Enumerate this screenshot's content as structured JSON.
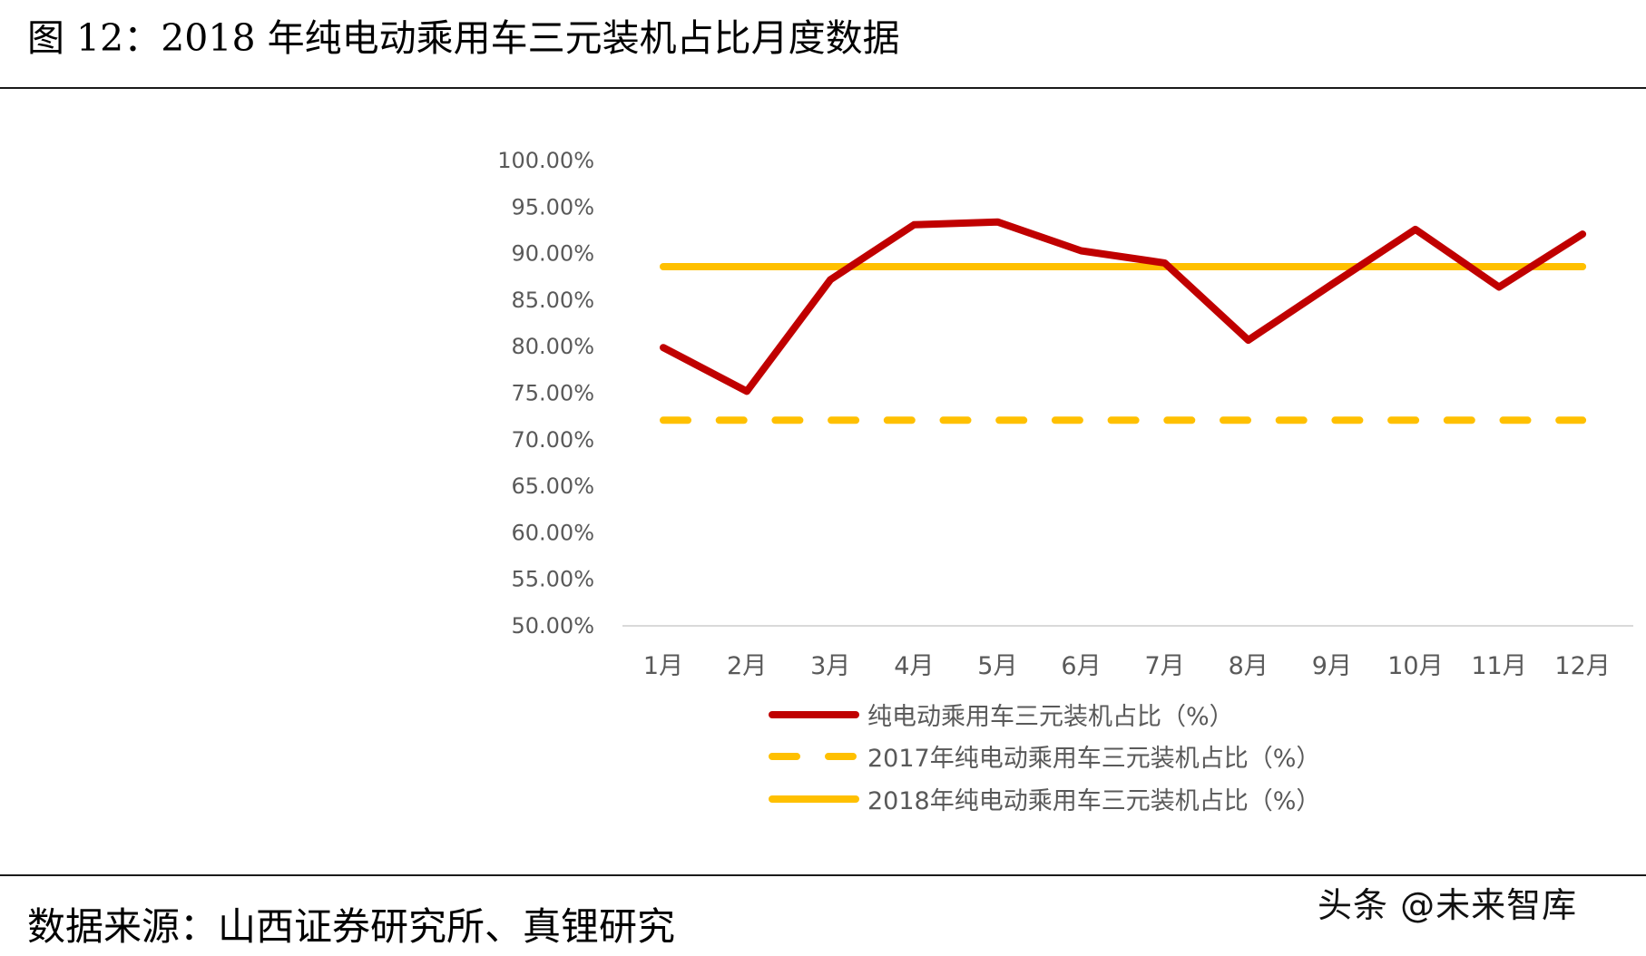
{
  "figure": {
    "title": "图  12：2018 年纯电动乘用车三元装机占比月度数据",
    "source": "数据来源：山西证券研究所、真锂研究",
    "watermark": "头条 @未来智库"
  },
  "colors": {
    "series_main": "#C00000",
    "series_2017": "#FFC000",
    "series_2018": "#FFC000",
    "axis_line": "#D9D9D9",
    "tick_text": "#595959"
  },
  "chart_data": {
    "type": "line",
    "title": "2018 年纯电动乘用车三元装机占比月度数据",
    "xlabel": "",
    "ylabel": "",
    "categories": [
      "1月",
      "2月",
      "3月",
      "4月",
      "5月",
      "6月",
      "7月",
      "8月",
      "9月",
      "10月",
      "11月",
      "12月"
    ],
    "yticks": [
      "100.00%",
      "95.00%",
      "90.00%",
      "85.00%",
      "80.00%",
      "75.00%",
      "70.00%",
      "65.00%",
      "60.00%",
      "55.00%",
      "50.00%"
    ],
    "ylim": [
      50,
      100
    ],
    "grid": false,
    "legend_position": "bottom",
    "series": [
      {
        "name": "纯电动乘用车三元装机占比（%）",
        "style": "solid",
        "color": "#C00000",
        "values": [
          79.9,
          75.2,
          87.2,
          93.1,
          93.4,
          90.3,
          89.0,
          80.7,
          86.7,
          92.6,
          86.4,
          92.1
        ]
      },
      {
        "name": "2017年纯电动乘用车三元装机占比（%）",
        "style": "dashed",
        "color": "#FFC000",
        "values": [
          72.1,
          72.1,
          72.1,
          72.1,
          72.1,
          72.1,
          72.1,
          72.1,
          72.1,
          72.1,
          72.1,
          72.1
        ]
      },
      {
        "name": "2018年纯电动乘用车三元装机占比（%）",
        "style": "solid",
        "color": "#FFC000",
        "values": [
          88.6,
          88.6,
          88.6,
          88.6,
          88.6,
          88.6,
          88.6,
          88.6,
          88.6,
          88.6,
          88.6,
          88.6
        ]
      }
    ]
  }
}
